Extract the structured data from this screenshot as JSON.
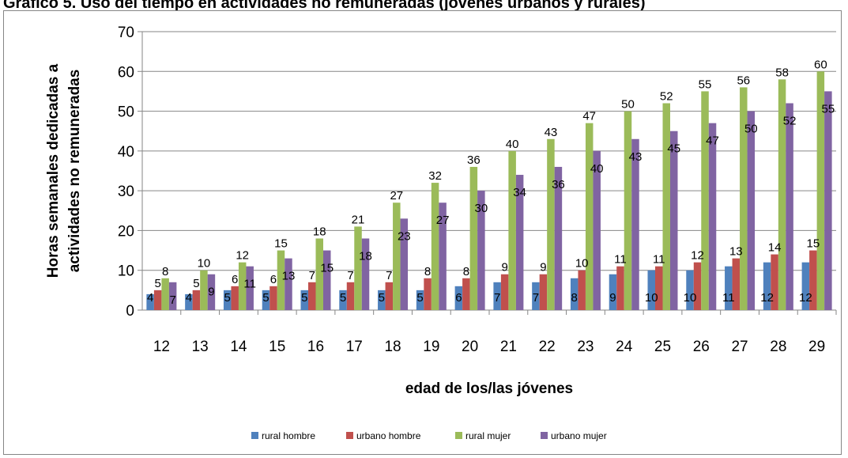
{
  "chart_data": {
    "type": "bar",
    "title": "Gráfico 5. Uso del tiempo en actividades no remuneradas (jóvenes urbanos y rurales)",
    "xlabel": "edad de los/las jóvenes",
    "ylabel": "Horas semanales dedicadas a actividades no remuneradas",
    "ylim": [
      0,
      70
    ],
    "yticks": [
      0,
      10,
      20,
      30,
      40,
      50,
      60,
      70
    ],
    "grid": true,
    "legend": "bottom",
    "categories": [
      "12",
      "13",
      "14",
      "15",
      "16",
      "17",
      "18",
      "19",
      "20",
      "21",
      "22",
      "23",
      "24",
      "25",
      "26",
      "27",
      "28",
      "29"
    ],
    "series": [
      {
        "name": "rural hombre",
        "color": "#4f81bd",
        "values": [
          4,
          4,
          5,
          5,
          5,
          5,
          5,
          5,
          6,
          7,
          7,
          8,
          9,
          10,
          10,
          11,
          12,
          12
        ]
      },
      {
        "name": "urbano hombre",
        "color": "#c0504d",
        "values": [
          5,
          5,
          6,
          6,
          7,
          7,
          7,
          8,
          8,
          9,
          9,
          10,
          11,
          11,
          12,
          13,
          14,
          15
        ]
      },
      {
        "name": "rural mujer",
        "color": "#9bbb59",
        "values": [
          8,
          10,
          12,
          15,
          18,
          21,
          27,
          32,
          36,
          40,
          43,
          47,
          50,
          52,
          55,
          56,
          58,
          60
        ]
      },
      {
        "name": "urbano mujer",
        "color": "#8064a2",
        "values": [
          7,
          9,
          11,
          13,
          15,
          18,
          23,
          27,
          30,
          34,
          36,
          40,
          43,
          45,
          47,
          50,
          52,
          55
        ]
      }
    ]
  }
}
